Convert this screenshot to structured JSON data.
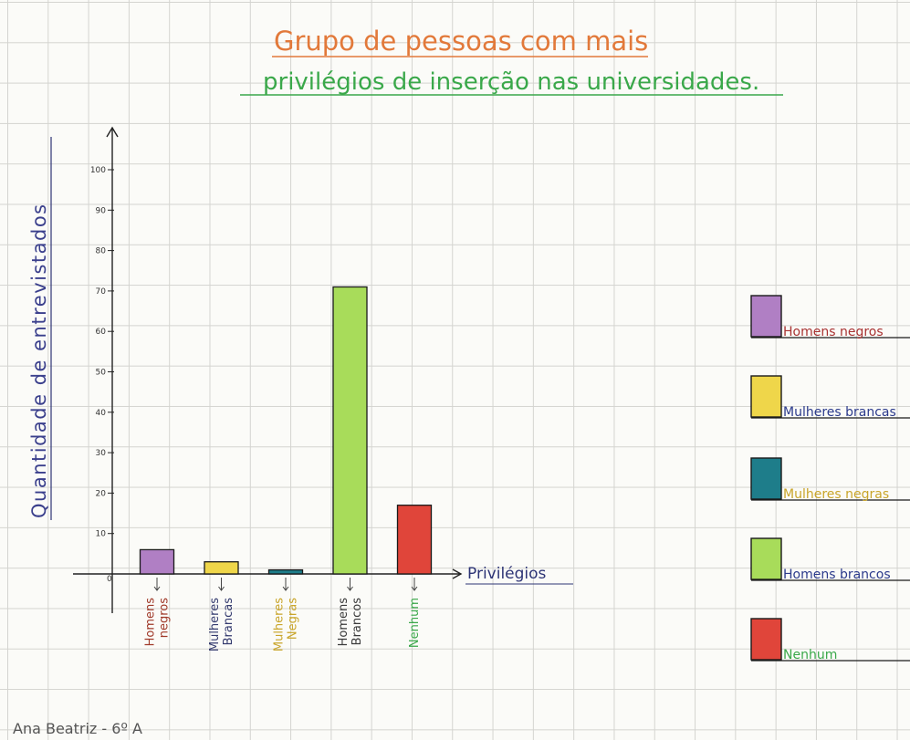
{
  "chart_data": {
    "type": "bar",
    "title": [
      "Grupo de pessoas com mais",
      "privilégios de inserção nas universidades."
    ],
    "ylabel": "Quantidade de entrevistados",
    "xlabel": "Privilégios",
    "ylim": [
      0,
      100
    ],
    "yticks": [
      10,
      20,
      30,
      40,
      50,
      60,
      70,
      80,
      90,
      100
    ],
    "origin_label": "0",
    "grid": true,
    "categories": [
      {
        "lines": [
          "Homens",
          "negros"
        ],
        "label_colors": [
          "#a03a2a",
          "#a03a2a"
        ]
      },
      {
        "lines": [
          "Mulheres",
          "Brancas"
        ],
        "label_colors": [
          "#333a6e",
          "#333a6e"
        ]
      },
      {
        "lines": [
          "Mulheres",
          "Negras"
        ],
        "label_colors": [
          "#c9a52a",
          "#c9a52a"
        ]
      },
      {
        "lines": [
          "Homens",
          "Brancos"
        ],
        "label_colors": [
          "#3a3a3a",
          "#3a3a3a"
        ]
      },
      {
        "lines": [
          "Nenhum"
        ],
        "label_colors": [
          "#3aa84a"
        ]
      }
    ],
    "values": [
      6,
      3,
      1,
      71,
      17
    ],
    "colors": [
      "#b07fc4",
      "#efd64a",
      "#1e7d8a",
      "#a8dc5a",
      "#e0453a"
    ],
    "legend": {
      "position": "right",
      "entries": [
        {
          "label": "Homens negros",
          "color": "#b07fc4",
          "text_color": "#a83232"
        },
        {
          "label": "Mulheres brancas",
          "color": "#efd64a",
          "text_color": "#2b3a8c"
        },
        {
          "label": "Mulheres negras",
          "color": "#1e7d8a",
          "text_color": "#c9a52a"
        },
        {
          "label": "Homens brancos",
          "color": "#a8dc5a",
          "text_color": "#2b3a8c"
        },
        {
          "label": "Nenhum",
          "color": "#e0453a",
          "text_color": "#3aa84a"
        }
      ]
    }
  },
  "signature": "Ana Beatriz  -  6º A"
}
